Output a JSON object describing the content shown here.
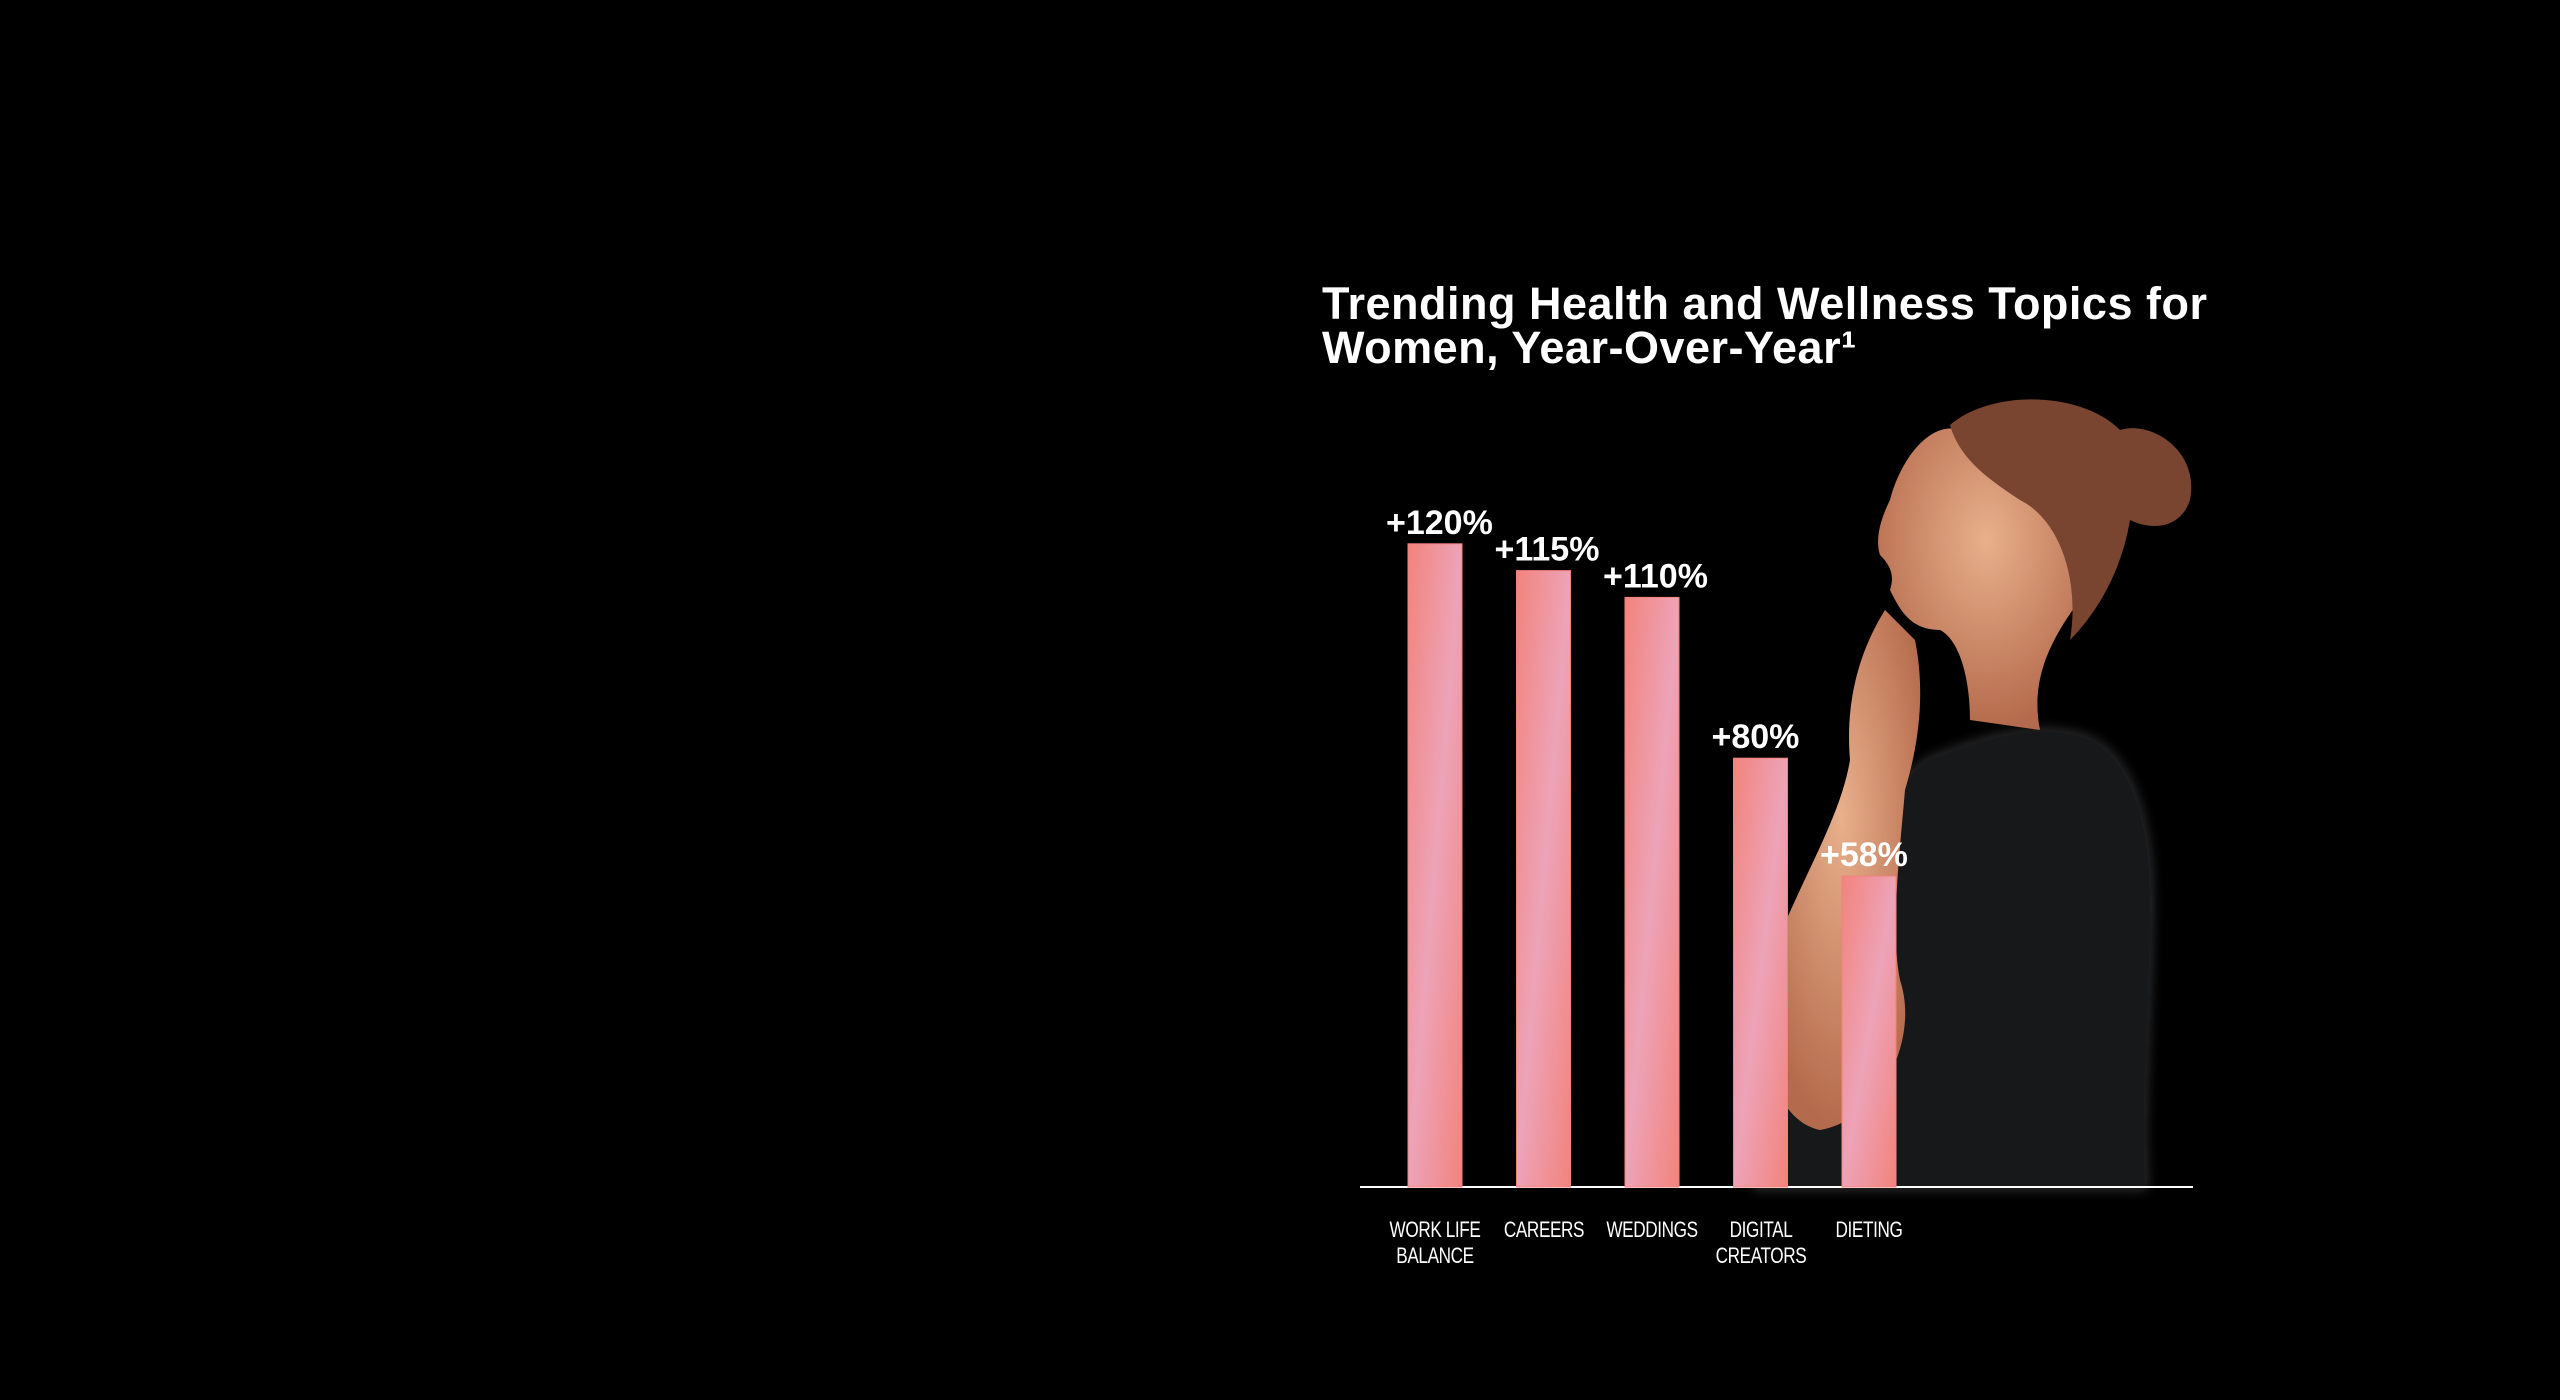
{
  "chart_data": {
    "type": "bar",
    "title": "Trending Health and Wellness Topics for Women, Year-Over-Year¹",
    "categories": [
      "WORK LIFE\nBALANCE",
      "CAREERS",
      "WEDDINGS",
      "DIGITAL\nCREATORS",
      "DIETING"
    ],
    "values": [
      120,
      115,
      110,
      80,
      58
    ],
    "value_labels": [
      "+120%",
      "+115%",
      "+110%",
      "+80%",
      "+58%"
    ],
    "color": "#f2837c"
  }
}
